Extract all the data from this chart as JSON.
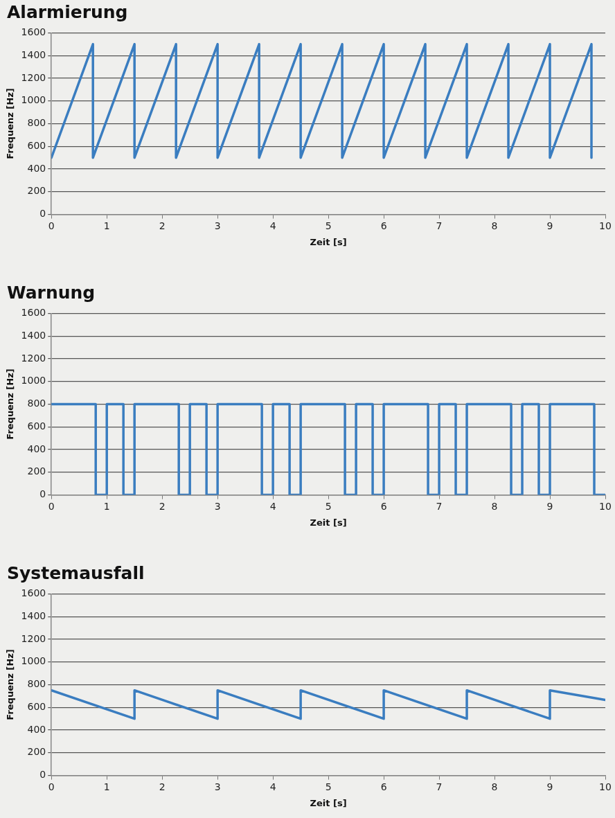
{
  "chart_data": [
    {
      "type": "line",
      "title": "Alarmierung",
      "xlabel": "Zeit [s]",
      "ylabel": "Frequenz [Hz]",
      "xlim": [
        0,
        10
      ],
      "xticks": [
        0,
        1,
        2,
        3,
        4,
        5,
        6,
        7,
        8,
        9,
        10
      ],
      "ylim": [
        0,
        1600
      ],
      "yticks": [
        0,
        200,
        400,
        600,
        800,
        1000,
        1200,
        1400,
        1600
      ],
      "grid": "y",
      "legend": false,
      "marker": "none",
      "line_style": "solid",
      "series": [
        {
          "color": "#3a7dc0",
          "x": [
            0,
            0.75,
            0.75,
            1.5,
            1.5,
            2.25,
            2.25,
            3,
            3,
            3.75,
            3.75,
            4.5,
            4.5,
            5.25,
            5.25,
            6,
            6,
            6.75,
            6.75,
            7.5,
            7.5,
            8.25,
            8.25,
            9,
            9,
            9.75,
            9.75
          ],
          "values": [
            500,
            1500,
            500,
            1500,
            500,
            1500,
            500,
            1500,
            500,
            1500,
            500,
            1500,
            500,
            1500,
            500,
            1500,
            500,
            1500,
            500,
            1500,
            500,
            1500,
            500,
            1500,
            500,
            1500,
            500
          ]
        }
      ]
    },
    {
      "type": "line",
      "title": "Warnung",
      "xlabel": "Zeit [s]",
      "ylabel": "Frequenz [Hz]",
      "xlim": [
        0,
        10
      ],
      "xticks": [
        0,
        1,
        2,
        3,
        4,
        5,
        6,
        7,
        8,
        9,
        10
      ],
      "ylim": [
        0,
        1600
      ],
      "yticks": [
        0,
        200,
        400,
        600,
        800,
        1000,
        1200,
        1400,
        1600
      ],
      "grid": "y",
      "legend": false,
      "marker": "none",
      "line_style": "solid",
      "series": [
        {
          "color": "#3a7dc0",
          "x": [
            0,
            0.8,
            0.8,
            1,
            1,
            1.3,
            1.3,
            1.5,
            1.5,
            2.3,
            2.3,
            2.5,
            2.5,
            2.8,
            2.8,
            3,
            3,
            3.8,
            3.8,
            4,
            4,
            4.3,
            4.3,
            4.5,
            4.5,
            5.3,
            5.3,
            5.5,
            5.5,
            5.8,
            5.8,
            6,
            6,
            6.8,
            6.8,
            7,
            7,
            7.3,
            7.3,
            7.5,
            7.5,
            8.3,
            8.3,
            8.5,
            8.5,
            8.8,
            8.8,
            9,
            9,
            9.8,
            9.8,
            10
          ],
          "values": [
            800,
            800,
            0,
            0,
            800,
            800,
            0,
            0,
            800,
            800,
            0,
            0,
            800,
            800,
            0,
            0,
            800,
            800,
            0,
            0,
            800,
            800,
            0,
            0,
            800,
            800,
            0,
            0,
            800,
            800,
            0,
            0,
            800,
            800,
            0,
            0,
            800,
            800,
            0,
            0,
            800,
            800,
            0,
            0,
            800,
            800,
            0,
            0,
            800,
            800,
            0,
            0
          ]
        }
      ]
    },
    {
      "type": "line",
      "title": "Systemausfall",
      "xlabel": "Zeit [s]",
      "ylabel": "Frequenz [Hz]",
      "xlim": [
        0,
        10
      ],
      "xticks": [
        0,
        1,
        2,
        3,
        4,
        5,
        6,
        7,
        8,
        9,
        10
      ],
      "ylim": [
        0,
        1600
      ],
      "yticks": [
        0,
        200,
        400,
        600,
        800,
        1000,
        1200,
        1400,
        1600
      ],
      "grid": "y",
      "legend": false,
      "marker": "none",
      "line_style": "solid",
      "series": [
        {
          "color": "#3a7dc0",
          "x": [
            0,
            1.5,
            1.5,
            3,
            3,
            4.5,
            4.5,
            6,
            6,
            7.5,
            7.5,
            9,
            9,
            10
          ],
          "values": [
            750,
            500,
            750,
            500,
            750,
            500,
            750,
            500,
            750,
            500,
            750,
            500,
            750,
            665
          ]
        }
      ]
    }
  ]
}
